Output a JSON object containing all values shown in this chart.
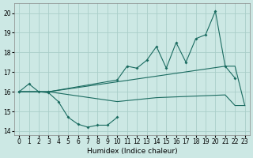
{
  "bg_color": "#cce8e4",
  "grid_color": "#aacec9",
  "line_color": "#1a6b60",
  "xlabel": "Humidex (Indice chaleur)",
  "xlim": [
    -0.5,
    23.5
  ],
  "ylim": [
    13.8,
    20.5
  ],
  "yticks": [
    14,
    15,
    16,
    17,
    18,
    19,
    20
  ],
  "xticks": [
    0,
    1,
    2,
    3,
    4,
    5,
    6,
    7,
    8,
    9,
    10,
    11,
    12,
    13,
    14,
    15,
    16,
    17,
    18,
    19,
    20,
    21,
    22,
    23
  ],
  "line1_x": [
    0,
    1,
    2,
    3,
    4,
    5,
    6,
    7,
    8,
    9,
    10
  ],
  "line1_y": [
    16.0,
    16.4,
    16.0,
    15.95,
    15.5,
    14.7,
    14.35,
    14.2,
    14.3,
    14.3,
    14.7
  ],
  "line2_x": [
    0,
    3,
    10,
    11,
    12,
    13,
    14,
    15,
    16,
    17,
    18,
    19,
    20,
    21,
    22
  ],
  "line2_y": [
    16.0,
    16.0,
    16.6,
    17.3,
    17.2,
    17.6,
    18.3,
    17.2,
    18.5,
    17.5,
    18.7,
    18.9,
    20.1,
    17.3,
    16.7
  ],
  "line3_x": [
    0,
    3,
    21,
    22,
    23
  ],
  "line3_y": [
    16.0,
    16.0,
    17.3,
    17.3,
    15.3
  ],
  "line4_x": [
    0,
    3,
    10,
    11,
    12,
    13,
    14,
    15,
    16,
    17,
    18,
    19,
    20,
    21,
    22,
    23
  ],
  "line4_y": [
    16.0,
    16.0,
    15.5,
    15.55,
    15.6,
    15.65,
    15.7,
    15.72,
    15.74,
    15.76,
    15.78,
    15.8,
    15.82,
    15.84,
    15.3,
    15.3
  ]
}
